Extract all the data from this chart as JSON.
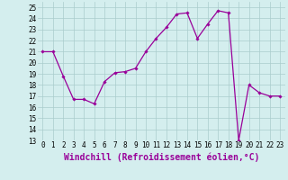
{
  "x": [
    0,
    1,
    2,
    3,
    4,
    5,
    6,
    7,
    8,
    9,
    10,
    11,
    12,
    13,
    14,
    15,
    16,
    17,
    18,
    19,
    20,
    21,
    22,
    23
  ],
  "y": [
    21,
    21,
    18.8,
    16.7,
    16.7,
    16.3,
    18.3,
    19.1,
    19.2,
    19.5,
    21.0,
    22.2,
    23.2,
    24.4,
    24.5,
    22.2,
    23.5,
    24.7,
    24.5,
    13.0,
    18.0,
    17.3,
    17.0,
    17.0
  ],
  "line_color": "#990099",
  "marker_color": "#990099",
  "bg_color": "#d4eeee",
  "grid_color": "#aacccc",
  "xlabel": "Windchill (Refroidissement éolien,°C)",
  "xlim": [
    -0.5,
    23.5
  ],
  "ylim": [
    13,
    25.5
  ],
  "yticks": [
    13,
    14,
    15,
    16,
    17,
    18,
    19,
    20,
    21,
    22,
    23,
    24,
    25
  ],
  "xticks": [
    0,
    1,
    2,
    3,
    4,
    5,
    6,
    7,
    8,
    9,
    10,
    11,
    12,
    13,
    14,
    15,
    16,
    17,
    18,
    19,
    20,
    21,
    22,
    23
  ],
  "tick_label_fontsize": 5.5,
  "xlabel_fontsize": 7,
  "marker_size": 1.8,
  "line_width": 0.9
}
